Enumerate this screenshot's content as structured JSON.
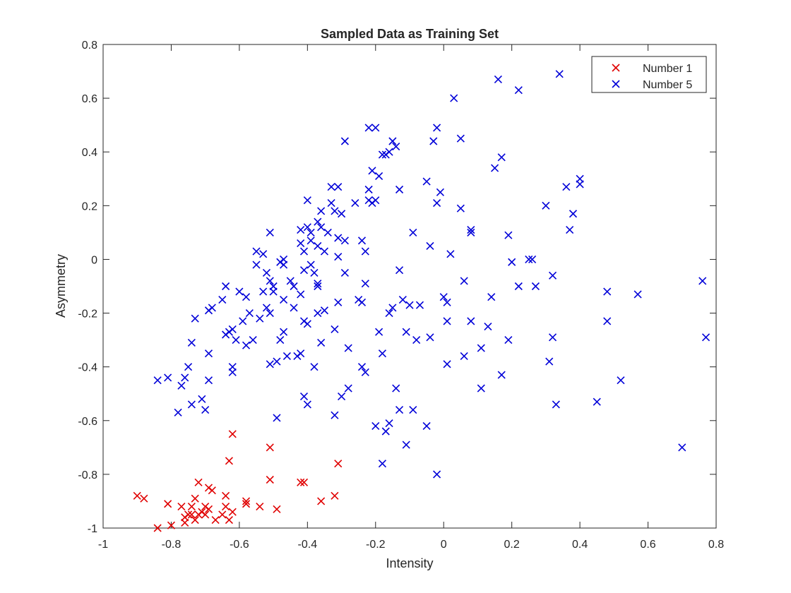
{
  "chart_data": {
    "type": "scatter",
    "title": "Sampled Data as Training Set",
    "xlabel": "Intensity",
    "ylabel": "Asymmetry",
    "xlim": [
      -1,
      0.8
    ],
    "ylim": [
      -1,
      0.8
    ],
    "xticks": [
      "-1",
      "-0.8",
      "-0.6",
      "-0.4",
      "-0.2",
      "0",
      "0.2",
      "0.4",
      "0.6",
      "0.8"
    ],
    "yticks": [
      "-1",
      "-0.8",
      "-0.6",
      "-0.4",
      "-0.2",
      "0",
      "0.2",
      "0.4",
      "0.6",
      "0.8"
    ],
    "grid": false,
    "legend_position": "top-right",
    "marker": "x",
    "series": [
      {
        "name": "Number 1",
        "color": "#e00000",
        "points": [
          [
            -0.9,
            -0.88
          ],
          [
            -0.88,
            -0.89
          ],
          [
            -0.84,
            -1.0
          ],
          [
            -0.81,
            -0.91
          ],
          [
            -0.8,
            -0.99
          ],
          [
            -0.77,
            -0.92
          ],
          [
            -0.76,
            -0.96
          ],
          [
            -0.76,
            -0.98
          ],
          [
            -0.75,
            -0.95
          ],
          [
            -0.74,
            -0.92
          ],
          [
            -0.74,
            -0.95
          ],
          [
            -0.73,
            -0.89
          ],
          [
            -0.73,
            -0.97
          ],
          [
            -0.72,
            -0.83
          ],
          [
            -0.72,
            -0.95
          ],
          [
            -0.71,
            -0.94
          ],
          [
            -0.7,
            -0.92
          ],
          [
            -0.7,
            -0.95
          ],
          [
            -0.69,
            -0.85
          ],
          [
            -0.69,
            -0.93
          ],
          [
            -0.68,
            -0.86
          ],
          [
            -0.67,
            -0.97
          ],
          [
            -0.65,
            -0.95
          ],
          [
            -0.64,
            -0.88
          ],
          [
            -0.64,
            -0.92
          ],
          [
            -0.63,
            -0.97
          ],
          [
            -0.62,
            -0.94
          ],
          [
            -0.63,
            -0.75
          ],
          [
            -0.62,
            -0.65
          ],
          [
            -0.58,
            -0.9
          ],
          [
            -0.58,
            -0.91
          ],
          [
            -0.54,
            -0.92
          ],
          [
            -0.51,
            -0.7
          ],
          [
            -0.51,
            -0.82
          ],
          [
            -0.49,
            -0.93
          ],
          [
            -0.42,
            -0.83
          ],
          [
            -0.41,
            -0.83
          ],
          [
            -0.36,
            -0.9
          ],
          [
            -0.32,
            -0.88
          ],
          [
            -0.31,
            -0.76
          ]
        ]
      },
      {
        "name": "Number 5",
        "color": "#0000d8",
        "points": [
          [
            -0.84,
            -0.45
          ],
          [
            -0.81,
            -0.44
          ],
          [
            -0.78,
            -0.57
          ],
          [
            -0.77,
            -0.47
          ],
          [
            -0.76,
            -0.44
          ],
          [
            -0.75,
            -0.4
          ],
          [
            -0.74,
            -0.54
          ],
          [
            -0.74,
            -0.31
          ],
          [
            -0.73,
            -0.22
          ],
          [
            -0.71,
            -0.52
          ],
          [
            -0.7,
            -0.56
          ],
          [
            -0.69,
            -0.35
          ],
          [
            -0.69,
            -0.45
          ],
          [
            -0.69,
            -0.19
          ],
          [
            -0.68,
            -0.18
          ],
          [
            -0.65,
            -0.15
          ],
          [
            -0.64,
            -0.28
          ],
          [
            -0.64,
            -0.1
          ],
          [
            -0.63,
            -0.27
          ],
          [
            -0.62,
            -0.26
          ],
          [
            -0.62,
            -0.4
          ],
          [
            -0.62,
            -0.42
          ],
          [
            -0.61,
            -0.3
          ],
          [
            -0.6,
            -0.12
          ],
          [
            -0.59,
            -0.23
          ],
          [
            -0.58,
            -0.14
          ],
          [
            -0.58,
            -0.32
          ],
          [
            -0.57,
            -0.2
          ],
          [
            -0.56,
            -0.3
          ],
          [
            -0.55,
            -0.02
          ],
          [
            -0.55,
            0.03
          ],
          [
            -0.54,
            -0.22
          ],
          [
            -0.53,
            -0.12
          ],
          [
            -0.53,
            0.02
          ],
          [
            -0.52,
            -0.05
          ],
          [
            -0.52,
            -0.18
          ],
          [
            -0.51,
            0.1
          ],
          [
            -0.51,
            -0.08
          ],
          [
            -0.51,
            -0.2
          ],
          [
            -0.51,
            -0.39
          ],
          [
            -0.5,
            -0.1
          ],
          [
            -0.5,
            -0.12
          ],
          [
            -0.49,
            -0.38
          ],
          [
            -0.49,
            -0.59
          ],
          [
            -0.48,
            -0.3
          ],
          [
            -0.48,
            -0.01
          ],
          [
            -0.47,
            -0.02
          ],
          [
            -0.47,
            0.0
          ],
          [
            -0.47,
            -0.15
          ],
          [
            -0.47,
            -0.27
          ],
          [
            -0.46,
            -0.36
          ],
          [
            -0.45,
            -0.08
          ],
          [
            -0.44,
            -0.1
          ],
          [
            -0.44,
            -0.18
          ],
          [
            -0.43,
            -0.36
          ],
          [
            -0.42,
            -0.35
          ],
          [
            -0.42,
            -0.13
          ],
          [
            -0.42,
            0.11
          ],
          [
            -0.42,
            0.06
          ],
          [
            -0.41,
            -0.51
          ],
          [
            -0.41,
            -0.23
          ],
          [
            -0.41,
            0.03
          ],
          [
            -0.41,
            -0.04
          ],
          [
            -0.4,
            -0.54
          ],
          [
            -0.4,
            -0.24
          ],
          [
            -0.4,
            0.12
          ],
          [
            -0.4,
            0.22
          ],
          [
            -0.39,
            0.1
          ],
          [
            -0.39,
            0.07
          ],
          [
            -0.39,
            -0.02
          ],
          [
            -0.38,
            -0.4
          ],
          [
            -0.38,
            -0.05
          ],
          [
            -0.37,
            -0.09
          ],
          [
            -0.37,
            -0.1
          ],
          [
            -0.37,
            -0.2
          ],
          [
            -0.37,
            0.05
          ],
          [
            -0.37,
            0.14
          ],
          [
            -0.36,
            0.18
          ],
          [
            -0.36,
            0.12
          ],
          [
            -0.36,
            -0.31
          ],
          [
            -0.35,
            -0.19
          ],
          [
            -0.35,
            0.03
          ],
          [
            -0.34,
            0.1
          ],
          [
            -0.33,
            0.27
          ],
          [
            -0.33,
            0.21
          ],
          [
            -0.32,
            0.18
          ],
          [
            -0.32,
            -0.26
          ],
          [
            -0.32,
            -0.58
          ],
          [
            -0.31,
            0.27
          ],
          [
            -0.31,
            0.08
          ],
          [
            -0.31,
            0.01
          ],
          [
            -0.31,
            -0.16
          ],
          [
            -0.3,
            0.17
          ],
          [
            -0.3,
            -0.51
          ],
          [
            -0.29,
            0.44
          ],
          [
            -0.29,
            0.07
          ],
          [
            -0.29,
            -0.05
          ],
          [
            -0.28,
            -0.33
          ],
          [
            -0.28,
            -0.48
          ],
          [
            -0.26,
            0.21
          ],
          [
            -0.25,
            -0.15
          ],
          [
            -0.24,
            -0.16
          ],
          [
            -0.24,
            0.07
          ],
          [
            -0.24,
            -0.4
          ],
          [
            -0.23,
            0.03
          ],
          [
            -0.23,
            -0.42
          ],
          [
            -0.23,
            -0.09
          ],
          [
            -0.22,
            0.22
          ],
          [
            -0.22,
            0.26
          ],
          [
            -0.22,
            0.49
          ],
          [
            -0.21,
            0.33
          ],
          [
            -0.21,
            0.21
          ],
          [
            -0.2,
            0.49
          ],
          [
            -0.2,
            0.22
          ],
          [
            -0.2,
            -0.62
          ],
          [
            -0.19,
            0.31
          ],
          [
            -0.19,
            -0.27
          ],
          [
            -0.18,
            0.39
          ],
          [
            -0.18,
            -0.35
          ],
          [
            -0.18,
            -0.76
          ],
          [
            -0.17,
            0.39
          ],
          [
            -0.17,
            -0.64
          ],
          [
            -0.16,
            0.4
          ],
          [
            -0.16,
            -0.2
          ],
          [
            -0.16,
            -0.61
          ],
          [
            -0.15,
            0.44
          ],
          [
            -0.15,
            -0.18
          ],
          [
            -0.14,
            0.42
          ],
          [
            -0.14,
            -0.48
          ],
          [
            -0.13,
            -0.04
          ],
          [
            -0.13,
            -0.56
          ],
          [
            -0.13,
            0.26
          ],
          [
            -0.12,
            -0.15
          ],
          [
            -0.11,
            -0.27
          ],
          [
            -0.11,
            -0.69
          ],
          [
            -0.1,
            -0.17
          ],
          [
            -0.09,
            0.1
          ],
          [
            -0.09,
            -0.56
          ],
          [
            -0.08,
            -0.3
          ],
          [
            -0.07,
            -0.17
          ],
          [
            -0.05,
            0.29
          ],
          [
            -0.05,
            -0.62
          ],
          [
            -0.04,
            -0.29
          ],
          [
            -0.04,
            0.05
          ],
          [
            -0.03,
            0.44
          ],
          [
            -0.02,
            0.49
          ],
          [
            -0.02,
            0.21
          ],
          [
            -0.02,
            -0.8
          ],
          [
            -0.01,
            0.25
          ],
          [
            0.0,
            -0.14
          ],
          [
            0.01,
            -0.16
          ],
          [
            0.01,
            -0.23
          ],
          [
            0.01,
            -0.39
          ],
          [
            0.02,
            0.02
          ],
          [
            0.03,
            0.6
          ],
          [
            0.05,
            0.45
          ],
          [
            0.05,
            0.19
          ],
          [
            0.06,
            -0.08
          ],
          [
            0.06,
            -0.36
          ],
          [
            0.08,
            0.11
          ],
          [
            0.08,
            0.1
          ],
          [
            0.08,
            -0.23
          ],
          [
            0.11,
            -0.48
          ],
          [
            0.11,
            -0.33
          ],
          [
            0.13,
            -0.25
          ],
          [
            0.14,
            -0.14
          ],
          [
            0.15,
            0.34
          ],
          [
            0.16,
            0.67
          ],
          [
            0.17,
            0.38
          ],
          [
            0.17,
            -0.43
          ],
          [
            0.19,
            0.09
          ],
          [
            0.19,
            -0.3
          ],
          [
            0.2,
            -0.01
          ],
          [
            0.22,
            0.63
          ],
          [
            0.22,
            -0.1
          ],
          [
            0.25,
            0.0
          ],
          [
            0.26,
            0.0
          ],
          [
            0.27,
            -0.1
          ],
          [
            0.3,
            0.2
          ],
          [
            0.31,
            -0.38
          ],
          [
            0.32,
            -0.06
          ],
          [
            0.32,
            -0.29
          ],
          [
            0.33,
            -0.54
          ],
          [
            0.34,
            0.69
          ],
          [
            0.36,
            0.27
          ],
          [
            0.37,
            0.11
          ],
          [
            0.38,
            0.17
          ],
          [
            0.4,
            0.3
          ],
          [
            0.4,
            0.28
          ],
          [
            0.45,
            -0.53
          ],
          [
            0.48,
            -0.12
          ],
          [
            0.48,
            -0.23
          ],
          [
            0.52,
            -0.45
          ],
          [
            0.57,
            -0.13
          ],
          [
            0.7,
            -0.7
          ],
          [
            0.76,
            -0.08
          ],
          [
            0.77,
            -0.29
          ]
        ]
      }
    ]
  }
}
